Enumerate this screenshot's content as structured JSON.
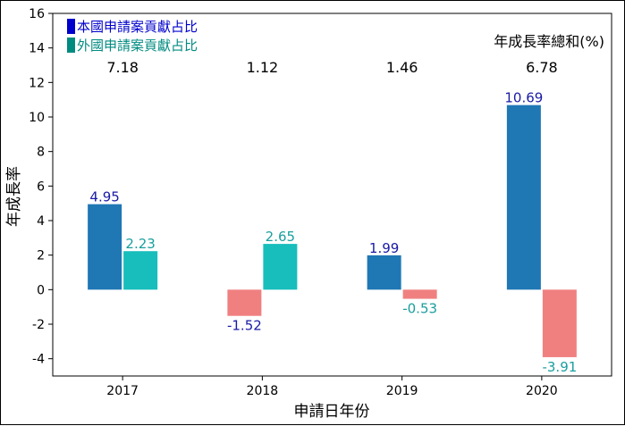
{
  "chart_data": {
    "type": "bar",
    "categories": [
      "2017",
      "2018",
      "2019",
      "2020"
    ],
    "series": [
      {
        "name": "本國申請案貢獻占比",
        "values": [
          4.95,
          -1.52,
          1.99,
          10.69
        ],
        "label_color": "#1a1aa6"
      },
      {
        "name": "外國申請案貢獻占比",
        "values": [
          2.23,
          2.65,
          -0.53,
          -3.91
        ],
        "label_color": "#1a9e9e"
      }
    ],
    "totals": [
      "7.18",
      "1.12",
      "1.46",
      "6.78"
    ],
    "totals_title": "年成長率總和(%)",
    "xlabel": "申請日年份",
    "ylabel": "年成長率",
    "ylim": [
      -5,
      16
    ],
    "yticks": [
      -4,
      -2,
      0,
      2,
      4,
      6,
      8,
      10,
      12,
      14,
      16
    ],
    "legend_position": "top-left",
    "grid": false,
    "colors": {
      "domestic_positive": "#1f77b4",
      "foreign_positive": "#17bebb",
      "negative": "#f08080",
      "legend_domestic": "#0000cc",
      "legend_foreign": "#008b80"
    }
  }
}
